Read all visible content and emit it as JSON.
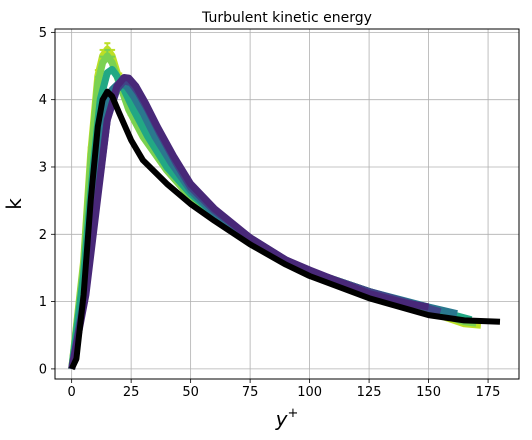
{
  "chart_data": {
    "type": "line",
    "title": "Turbulent kinetic energy",
    "xlabel": "y",
    "xlabel_sup": "+",
    "ylabel": "k",
    "xlim": [
      -7,
      188
    ],
    "ylim": [
      -0.15,
      5.05
    ],
    "xticks": [
      0,
      25,
      50,
      75,
      100,
      125,
      150,
      175
    ],
    "yticks": [
      0,
      1,
      2,
      3,
      4,
      5
    ],
    "grid": true,
    "legend": "none",
    "series": [
      {
        "color": "#bddf26",
        "error_bars": true,
        "x": [
          0,
          5,
          8,
          11,
          13,
          15,
          17,
          20,
          24,
          30,
          40,
          50,
          60,
          75,
          90,
          100,
          125,
          150,
          165,
          172
        ],
        "y": [
          0.0,
          1.6,
          3.2,
          4.35,
          4.65,
          4.75,
          4.65,
          4.3,
          3.85,
          3.45,
          2.95,
          2.55,
          2.25,
          1.9,
          1.6,
          1.45,
          1.15,
          0.85,
          0.67,
          0.65
        ]
      },
      {
        "color": "#7ad151",
        "error_bars": true,
        "x": [
          0,
          5,
          8,
          11,
          13,
          15,
          17,
          20,
          24,
          30,
          40,
          50,
          60,
          75,
          90,
          100,
          125,
          150,
          165,
          170
        ],
        "y": [
          0.0,
          1.55,
          3.1,
          4.25,
          4.55,
          4.65,
          4.55,
          4.25,
          3.85,
          3.45,
          2.95,
          2.55,
          2.25,
          1.9,
          1.6,
          1.45,
          1.15,
          0.87,
          0.7,
          0.68
        ]
      },
      {
        "color": "#22a884",
        "error_bars": false,
        "x": [
          0,
          5,
          9,
          12,
          15,
          17,
          19,
          22,
          26,
          32,
          40,
          50,
          60,
          75,
          90,
          100,
          125,
          150,
          168
        ],
        "y": [
          0.0,
          1.4,
          3.0,
          4.0,
          4.4,
          4.45,
          4.35,
          4.15,
          3.85,
          3.45,
          3.0,
          2.6,
          2.3,
          1.9,
          1.6,
          1.45,
          1.15,
          0.9,
          0.73
        ]
      },
      {
        "color": "#2a788e",
        "error_bars": false,
        "x": [
          0,
          6,
          10,
          14,
          17,
          20,
          23,
          26,
          30,
          35,
          42,
          50,
          60,
          75,
          90,
          100,
          125,
          150,
          162
        ],
        "y": [
          0.0,
          1.25,
          2.75,
          3.8,
          4.15,
          4.25,
          4.2,
          4.05,
          3.8,
          3.45,
          3.05,
          2.65,
          2.3,
          1.9,
          1.6,
          1.45,
          1.15,
          0.92,
          0.82
        ]
      },
      {
        "color": "#414487",
        "error_bars": false,
        "x": [
          0,
          6,
          11,
          15,
          19,
          22,
          25,
          28,
          32,
          37,
          44,
          50,
          60,
          75,
          90,
          100,
          125,
          145,
          155
        ],
        "y": [
          0.0,
          1.15,
          2.6,
          3.7,
          4.15,
          4.28,
          4.25,
          4.1,
          3.85,
          3.5,
          3.05,
          2.7,
          2.35,
          1.95,
          1.62,
          1.45,
          1.15,
          0.95,
          0.85
        ]
      },
      {
        "color": "#482878",
        "error_bars": false,
        "x": [
          0,
          6,
          11,
          15,
          19,
          22,
          24,
          27,
          31,
          36,
          43,
          50,
          60,
          75,
          90,
          100,
          125,
          140,
          150
        ],
        "y": [
          0.0,
          1.1,
          2.55,
          3.7,
          4.2,
          4.33,
          4.32,
          4.2,
          3.95,
          3.6,
          3.15,
          2.75,
          2.38,
          1.95,
          1.62,
          1.47,
          1.12,
          0.98,
          0.92
        ]
      },
      {
        "color": "#000000",
        "error_bars": false,
        "x": [
          0,
          2,
          5,
          8,
          11,
          13,
          15,
          17,
          20,
          25,
          30,
          40,
          50,
          60,
          75,
          90,
          100,
          125,
          150,
          165,
          180
        ],
        "y": [
          0.0,
          0.15,
          1.1,
          2.5,
          3.6,
          4.0,
          4.12,
          4.05,
          3.8,
          3.4,
          3.1,
          2.75,
          2.45,
          2.2,
          1.85,
          1.55,
          1.38,
          1.05,
          0.8,
          0.72,
          0.7
        ]
      }
    ]
  }
}
